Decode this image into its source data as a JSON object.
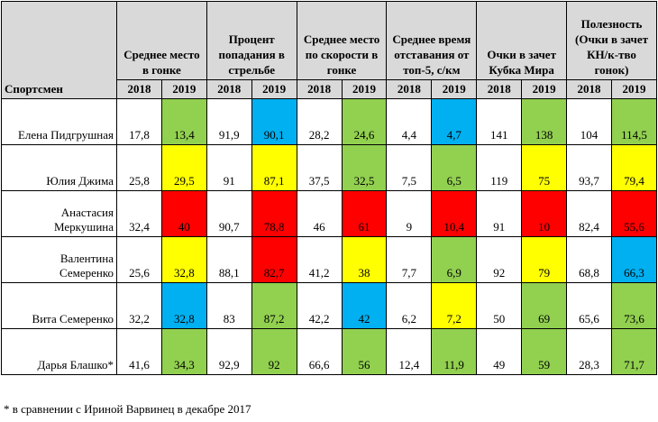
{
  "header": {
    "athlete": "Спортсмен",
    "groups": [
      "Среднее место в гонке",
      "Процент попадания в стрельбе",
      "Среднее место по скорости в гонке",
      "Среднее время отставания от топ-5, с/км",
      "Очки в зачет Кубка Мира",
      "Полезность (Очки в зачет КН/к-тво гонок)"
    ],
    "years": [
      "2018",
      "2019"
    ]
  },
  "table": {
    "rows": [
      {
        "name": "Елена Пидгрушная",
        "cells": [
          "17,8",
          "13,4",
          "91,9",
          "90,1",
          "28,2",
          "24,6",
          "4,4",
          "4,7",
          "141",
          "138",
          "104",
          "114,5"
        ],
        "colors": [
          "#92d050",
          "#00b0f0",
          "#92d050",
          "#00b0f0",
          "#92d050",
          "#92d050"
        ]
      },
      {
        "name": "Юлия Джима",
        "cells": [
          "25,8",
          "29,5",
          "91",
          "87,1",
          "37,5",
          "32,5",
          "7,5",
          "6,5",
          "119",
          "75",
          "93,7",
          "79,4"
        ],
        "colors": [
          "#ffff00",
          "#ffff00",
          "#92d050",
          "#92d050",
          "#ffff00",
          "#ffff00"
        ]
      },
      {
        "name": "Анастасия Меркушина",
        "cells": [
          "32,4",
          "40",
          "90,7",
          "78,8",
          "46",
          "61",
          "9",
          "10,4",
          "91",
          "10",
          "82,4",
          "55,6"
        ],
        "colors": [
          "#ff0000",
          "#ff0000",
          "#ff0000",
          "#ff0000",
          "#ff0000",
          "#ff0000"
        ]
      },
      {
        "name": "Валентина Семеренко",
        "cells": [
          "25,6",
          "32,8",
          "88,1",
          "82,7",
          "41,2",
          "38",
          "7,7",
          "6,9",
          "92",
          "79",
          "68,8",
          "66,3"
        ],
        "colors": [
          "#ffff00",
          "#ff0000",
          "#ffff00",
          "#92d050",
          "#ffff00",
          "#00b0f0"
        ]
      },
      {
        "name": "Вита Семеренко",
        "cells": [
          "32,2",
          "32,8",
          "83",
          "87,2",
          "42,2",
          "42",
          "6,2",
          "7,2",
          "50",
          "69",
          "65,6",
          "73,6"
        ],
        "colors": [
          "#00b0f0",
          "#92d050",
          "#00b0f0",
          "#ffff00",
          "#92d050",
          "#92d050"
        ]
      },
      {
        "name": "Дарья Блашко*",
        "cells": [
          "41,6",
          "34,3",
          "92,9",
          "92",
          "66,6",
          "56",
          "12,4",
          "11,9",
          "49",
          "59",
          "28,3",
          "71,7"
        ],
        "colors": [
          "#92d050",
          "#92d050",
          "#92d050",
          "#92d050",
          "#92d050",
          "#92d050"
        ]
      }
    ]
  },
  "footnote": "* в сравнении с Ириной Варвинец в декабре 2017"
}
